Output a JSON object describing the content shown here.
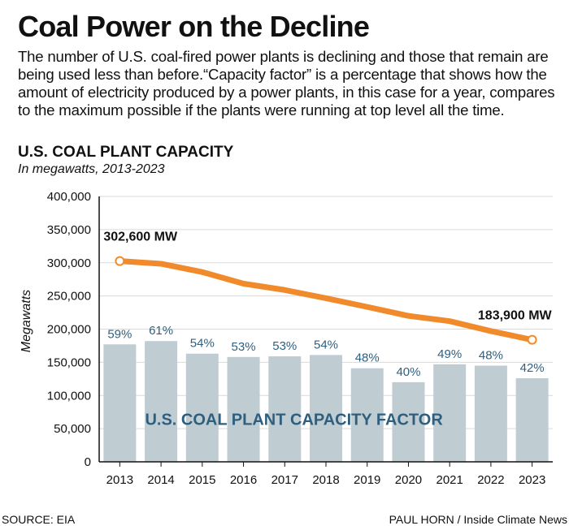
{
  "header": {
    "title": "Coal Power on the Decline",
    "description": "The number of U.S. coal-fired power plants is declining and those that remain are being used less than before.“Capacity factor” is a percentage that shows how the amount of electricity produced by a power plants, in this case for a year, compares to the maximum possible if the plants were running at top level all the time."
  },
  "footer": {
    "source": "SOURCE: EIA",
    "credit": "PAUL HORN / Inside Climate News"
  },
  "colors": {
    "bar": "#bfcdd3",
    "line": "#f08a2a",
    "bar_label": "#2f5f7f",
    "grid": "#d9d9d9",
    "axis": "#111111"
  },
  "chart_data": {
    "type": "bar",
    "title": "U.S. COAL PLANT CAPACITY",
    "subtitle": "In megawatts, 2013-2023",
    "xlabel": "",
    "ylabel": "Megawatts",
    "ylim": [
      0,
      400000
    ],
    "yticks": [
      0,
      50000,
      100000,
      150000,
      200000,
      250000,
      300000,
      350000,
      400000
    ],
    "ytick_labels": [
      "0",
      "50,000",
      "100,000",
      "150,000",
      "200,000",
      "250,000",
      "300,000",
      "350,000",
      "400,000"
    ],
    "grid": true,
    "categories": [
      "2013",
      "2014",
      "2015",
      "2016",
      "2017",
      "2018",
      "2019",
      "2020",
      "2021",
      "2022",
      "2023"
    ],
    "series": [
      {
        "name": "U.S. COAL PLANT CAPACITY FACTOR",
        "kind": "bar",
        "bar_heights": [
          177000,
          182000,
          163000,
          158000,
          159000,
          161000,
          141000,
          120000,
          147000,
          145000,
          126000
        ],
        "labels": [
          "59%",
          "61%",
          "54%",
          "53%",
          "53%",
          "54%",
          "48%",
          "40%",
          "49%",
          "48%",
          "42%"
        ]
      },
      {
        "name": "U.S. coal plant capacity (MW)",
        "kind": "line",
        "values": [
          302600,
          298500,
          286000,
          268500,
          259000,
          246500,
          233500,
          220000,
          212000,
          197000,
          183900
        ]
      }
    ],
    "annotations": [
      {
        "index": 0,
        "text": "302,600 MW"
      },
      {
        "index": 10,
        "text": "183,900 MW"
      }
    ]
  }
}
